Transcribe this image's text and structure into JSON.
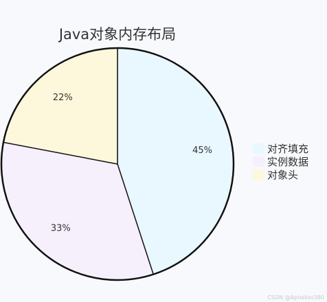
{
  "chart_data": {
    "type": "pie",
    "title": "Java对象内存布局",
    "slices": [
      {
        "name": "对齐填充",
        "value": 45,
        "label": "45%",
        "color": "#e9f7ff"
      },
      {
        "name": "实例数据",
        "value": 33,
        "label": "33%",
        "color": "#f6f0fd"
      },
      {
        "name": "对象头",
        "value": 22,
        "label": "22%",
        "color": "#fdf8dc"
      }
    ],
    "start_angle_deg": 0,
    "direction": "clockwise",
    "legend_position": "right"
  },
  "watermark": "CSDN @Aphelios380"
}
